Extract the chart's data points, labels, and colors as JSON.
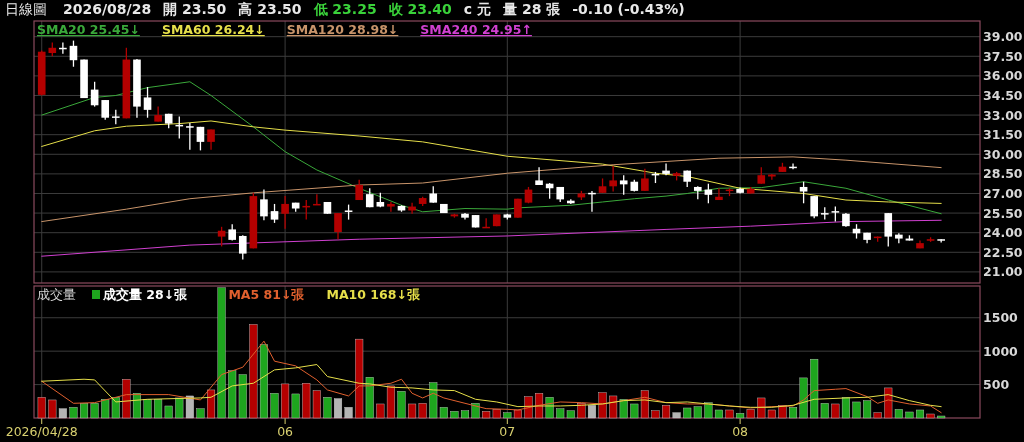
{
  "chart_data": [
    {
      "type": "candlestick",
      "title": "日線圖",
      "annotations": [
        "2026/08/28",
        "開 23.50",
        "高 23.50",
        "低 23.25",
        "收 23.40",
        "c 元",
        "量 28 張",
        "-0.10 (-0.43%)"
      ],
      "categories": [
        "2026/04/28",
        null,
        null,
        null,
        null,
        null,
        null,
        null,
        null,
        null,
        null,
        null,
        null,
        null,
        null,
        null,
        null,
        null,
        null,
        null,
        null,
        null,
        null,
        "06",
        null,
        null,
        null,
        null,
        null,
        null,
        null,
        null,
        null,
        null,
        null,
        null,
        null,
        null,
        null,
        null,
        null,
        null,
        null,
        null,
        "07",
        null,
        null,
        null,
        null,
        null,
        null,
        null,
        null,
        null,
        null,
        null,
        null,
        null,
        null,
        null,
        null,
        null,
        null,
        null,
        null,
        null,
        "08",
        null,
        null,
        null,
        null,
        null,
        null,
        null,
        null,
        null,
        null,
        null,
        null,
        null,
        null,
        null,
        null,
        null,
        null,
        null
      ],
      "ohlc": [
        [
          34.55,
          37.95,
          34.5,
          37.85
        ],
        [
          37.75,
          38.55,
          37.5,
          38.15
        ],
        [
          38.15,
          38.55,
          37.7,
          38.1
        ],
        [
          38.3,
          38.7,
          36.7,
          37.2
        ],
        [
          37.25,
          37.25,
          34.3,
          34.3
        ],
        [
          34.95,
          35.55,
          33.65,
          33.75
        ],
        [
          34.15,
          34.15,
          32.65,
          32.8
        ],
        [
          32.9,
          33.4,
          32.3,
          32.85
        ],
        [
          32.75,
          38.15,
          32.75,
          37.25
        ],
        [
          37.25,
          37.3,
          32.8,
          33.65
        ],
        [
          34.35,
          35.15,
          32.8,
          33.4
        ],
        [
          32.5,
          33.65,
          32.5,
          33.0
        ],
        [
          33.1,
          33.1,
          32.0,
          32.35
        ],
        [
          32.25,
          32.9,
          31.2,
          32.2
        ],
        [
          32.15,
          32.4,
          30.35,
          32.1
        ],
        [
          32.1,
          32.1,
          30.3,
          30.95
        ],
        [
          30.95,
          31.9,
          30.35,
          31.9
        ],
        [
          23.7,
          24.45,
          22.95,
          24.15
        ],
        [
          24.25,
          24.65,
          23.4,
          23.45
        ],
        [
          23.75,
          23.8,
          21.95,
          22.4
        ],
        [
          22.8,
          27.05,
          22.8,
          26.8
        ],
        [
          26.55,
          27.3,
          24.95,
          25.25
        ],
        [
          25.65,
          26.2,
          24.75,
          25.0
        ],
        [
          25.45,
          26.8,
          24.3,
          26.2
        ],
        [
          26.3,
          26.3,
          25.6,
          25.85
        ],
        [
          26.0,
          26.5,
          25.0,
          26.05
        ],
        [
          26.15,
          26.95,
          26.15,
          26.2
        ],
        [
          26.35,
          26.35,
          25.45,
          25.45
        ],
        [
          24.05,
          25.5,
          23.5,
          25.5
        ],
        [
          25.7,
          26.15,
          25.0,
          25.65
        ],
        [
          26.5,
          28.05,
          26.5,
          27.65
        ],
        [
          26.95,
          27.4,
          25.95,
          25.95
        ],
        [
          26.35,
          27.05,
          25.95,
          26.0
        ],
        [
          26.0,
          26.35,
          25.6,
          26.2
        ],
        [
          26.05,
          26.1,
          25.6,
          25.7
        ],
        [
          25.7,
          26.3,
          25.45,
          26.0
        ],
        [
          26.2,
          26.75,
          26.05,
          26.65
        ],
        [
          27.0,
          27.55,
          26.3,
          26.3
        ],
        [
          26.2,
          26.2,
          25.5,
          25.5
        ],
        [
          25.25,
          25.45,
          25.15,
          25.4
        ],
        [
          25.45,
          25.5,
          25.0,
          25.15
        ],
        [
          25.35,
          25.35,
          24.4,
          24.4
        ],
        [
          24.4,
          25.1,
          24.4,
          24.45
        ],
        [
          24.5,
          25.4,
          24.5,
          25.4
        ],
        [
          25.4,
          25.45,
          25.0,
          25.15
        ],
        [
          25.15,
          26.6,
          25.15,
          26.6
        ],
        [
          26.3,
          27.5,
          26.25,
          27.3
        ],
        [
          28.0,
          29.0,
          27.65,
          27.65
        ],
        [
          27.75,
          27.8,
          26.6,
          27.4
        ],
        [
          27.5,
          27.5,
          26.35,
          26.55
        ],
        [
          26.45,
          26.55,
          26.2,
          26.25
        ],
        [
          26.7,
          27.2,
          26.5,
          27.0
        ],
        [
          27.05,
          27.2,
          25.6,
          27.0
        ],
        [
          27.05,
          28.15,
          27.05,
          27.55
        ],
        [
          27.55,
          29.1,
          27.15,
          28.0
        ],
        [
          28.0,
          28.4,
          26.9,
          27.7
        ],
        [
          27.9,
          28.05,
          27.15,
          27.2
        ],
        [
          27.2,
          28.9,
          27.2,
          28.15
        ],
        [
          28.5,
          28.65,
          27.8,
          28.45
        ],
        [
          28.75,
          29.3,
          28.4,
          28.5
        ],
        [
          28.35,
          28.65,
          28.0,
          28.55
        ],
        [
          28.75,
          28.75,
          27.5,
          27.9
        ],
        [
          27.5,
          27.55,
          26.55,
          27.2
        ],
        [
          27.3,
          27.75,
          26.25,
          26.9
        ],
        [
          26.5,
          27.4,
          26.5,
          26.75
        ],
        [
          27.2,
          27.4,
          26.8,
          27.3
        ],
        [
          27.35,
          27.45,
          27.0,
          27.05
        ],
        [
          27.0,
          27.5,
          27.0,
          27.35
        ],
        [
          27.75,
          29.0,
          27.75,
          28.4
        ],
        [
          28.3,
          28.5,
          28.05,
          28.45
        ],
        [
          28.65,
          29.35,
          28.65,
          29.05
        ],
        [
          29.05,
          29.3,
          28.85,
          29.0
        ],
        [
          27.5,
          27.9,
          26.25,
          27.15
        ],
        [
          26.8,
          26.8,
          25.1,
          25.25
        ],
        [
          25.5,
          25.95,
          25.0,
          25.45
        ],
        [
          25.65,
          26.0,
          24.85,
          25.6
        ],
        [
          25.45,
          25.5,
          24.45,
          24.5
        ],
        [
          24.3,
          24.65,
          23.55,
          23.95
        ],
        [
          24.0,
          24.0,
          23.2,
          23.45
        ],
        [
          23.6,
          23.7,
          23.3,
          23.7
        ],
        [
          25.5,
          25.5,
          22.95,
          23.7
        ],
        [
          23.85,
          23.95,
          23.2,
          23.55
        ],
        [
          23.55,
          23.8,
          23.4,
          23.4
        ],
        [
          22.8,
          23.4,
          22.8,
          23.2
        ],
        [
          23.45,
          23.65,
          23.3,
          23.5
        ],
        [
          23.5,
          23.5,
          23.25,
          23.4
        ]
      ],
      "colors": [
        "#b40000",
        "#b40000",
        "#ffffff",
        "#ffffff",
        "#ffffff",
        "#ffffff",
        "#ffffff",
        "#ffffff",
        "#b40000",
        "#ffffff",
        "#ffffff",
        "#b40000",
        "#ffffff",
        "#ffffff",
        "#ffffff",
        "#ffffff",
        "#b40000",
        "#b40000",
        "#ffffff",
        "#ffffff",
        "#b40000",
        "#ffffff",
        "#ffffff",
        "#b40000",
        "#ffffff",
        "#b40000",
        "#b40000",
        "#ffffff",
        "#b40000",
        "#ffffff",
        "#b40000",
        "#ffffff",
        "#ffffff",
        "#b40000",
        "#ffffff",
        "#b40000",
        "#b40000",
        "#ffffff",
        "#ffffff",
        "#b40000",
        "#ffffff",
        "#ffffff",
        "#b40000",
        "#b40000",
        "#ffffff",
        "#b40000",
        "#b40000",
        "#ffffff",
        "#ffffff",
        "#ffffff",
        "#ffffff",
        "#b40000",
        "#ffffff",
        "#b40000",
        "#b40000",
        "#ffffff",
        "#ffffff",
        "#b40000",
        "#ffffff",
        "#ffffff",
        "#b40000",
        "#ffffff",
        "#ffffff",
        "#ffffff",
        "#b40000",
        "#b40000",
        "#ffffff",
        "#b40000",
        "#b40000",
        "#b40000",
        "#b40000",
        "#ffffff",
        "#ffffff",
        "#ffffff",
        "#ffffff",
        "#ffffff",
        "#ffffff",
        "#ffffff",
        "#ffffff",
        "#b40000",
        "#ffffff",
        "#ffffff",
        "#ffffff",
        "#b40000",
        "#b40000",
        "#ffffff"
      ],
      "series": [
        {
          "type": "line",
          "name": "SMA20 25.45↓",
          "color": "#3aa83a",
          "values": [
            33.0,
            null,
            null,
            null,
            null,
            34.35,
            null,
            34.5,
            null,
            null,
            35.1,
            null,
            null,
            null,
            35.55,
            null,
            34.5,
            null,
            null,
            null,
            32.1,
            null,
            null,
            30.2,
            null,
            null,
            28.8,
            null,
            null,
            null,
            27.4,
            null,
            null,
            null,
            26.1,
            null,
            25.6,
            null,
            null,
            null,
            25.85,
            null,
            null,
            null,
            25.8,
            25.9,
            null,
            null,
            null,
            null,
            26.1,
            null,
            null,
            26.35,
            null,
            null,
            26.6,
            null,
            null,
            26.8,
            null,
            27.0,
            null,
            null,
            27.4,
            null,
            null,
            null,
            27.45,
            null,
            null,
            null,
            27.9,
            null,
            null,
            null,
            27.4,
            null,
            null,
            null,
            26.5,
            null,
            null,
            null,
            null,
            25.45
          ]
        },
        {
          "type": "line",
          "name": "SMA60 26.24↓",
          "color": "#e6df4a",
          "values": [
            30.6,
            null,
            null,
            null,
            null,
            31.8,
            null,
            null,
            32.15,
            null,
            null,
            null,
            null,
            32.35,
            null,
            null,
            32.55,
            null,
            null,
            null,
            32.1,
            null,
            null,
            31.85,
            null,
            null,
            null,
            null,
            null,
            null,
            31.4,
            null,
            null,
            null,
            null,
            null,
            30.95,
            null,
            null,
            null,
            null,
            null,
            null,
            null,
            29.85,
            null,
            null,
            null,
            null,
            null,
            null,
            null,
            null,
            29.25,
            null,
            null,
            null,
            null,
            28.55,
            null,
            null,
            28.3,
            null,
            null,
            null,
            null,
            27.4,
            null,
            null,
            null,
            null,
            null,
            27.0,
            null,
            null,
            null,
            26.5,
            null,
            null,
            null,
            26.35,
            null,
            null,
            null,
            null,
            26.24
          ]
        },
        {
          "type": "line",
          "name": "SMA120 28.98↓",
          "color": "#c8946a",
          "values": [
            24.85,
            null,
            null,
            null,
            null,
            null,
            null,
            null,
            25.8,
            null,
            null,
            null,
            null,
            null,
            26.6,
            null,
            null,
            null,
            null,
            null,
            27.05,
            null,
            null,
            null,
            null,
            null,
            null,
            null,
            null,
            null,
            27.65,
            null,
            null,
            null,
            null,
            null,
            27.8,
            null,
            null,
            null,
            null,
            null,
            null,
            null,
            28.55,
            null,
            null,
            null,
            null,
            null,
            null,
            null,
            null,
            null,
            29.2,
            null,
            null,
            null,
            null,
            29.45,
            null,
            null,
            null,
            null,
            29.7,
            null,
            null,
            null,
            null,
            null,
            null,
            29.8,
            null,
            null,
            null,
            null,
            29.55,
            null,
            null,
            null,
            null,
            null,
            null,
            null,
            null,
            28.98
          ]
        },
        {
          "type": "line",
          "name": "SMA240 24.95↑",
          "color": "#d040d0",
          "values": [
            22.2,
            null,
            null,
            null,
            null,
            null,
            null,
            null,
            null,
            null,
            null,
            null,
            null,
            null,
            23.05,
            null,
            null,
            null,
            null,
            null,
            null,
            null,
            null,
            null,
            null,
            null,
            null,
            null,
            null,
            null,
            23.5,
            null,
            null,
            null,
            null,
            null,
            null,
            null,
            null,
            null,
            null,
            null,
            null,
            null,
            23.75,
            null,
            null,
            null,
            null,
            null,
            null,
            null,
            null,
            null,
            null,
            null,
            null,
            null,
            null,
            24.25,
            null,
            null,
            null,
            null,
            null,
            null,
            null,
            24.5,
            null,
            null,
            null,
            null,
            null,
            null,
            null,
            null,
            24.85,
            null,
            null,
            null,
            null,
            null,
            null,
            null,
            null,
            24.95
          ]
        }
      ],
      "ylim": [
        20.15,
        40.2
      ],
      "yticks": [
        {
          "value": 21,
          "label": "21.00"
        },
        {
          "value": 22.5,
          "label": "22.50"
        },
        {
          "value": 24,
          "label": "24.00"
        },
        {
          "value": 25.5,
          "label": "25.50"
        },
        {
          "value": 27,
          "label": "27.00"
        },
        {
          "value": 28.5,
          "label": "28.50"
        },
        {
          "value": 30,
          "label": "30.00"
        },
        {
          "value": 31.5,
          "label": "31.50"
        },
        {
          "value": 33,
          "label": "33.00"
        },
        {
          "value": 34.5,
          "label": "34.50"
        },
        {
          "value": 36,
          "label": "36.00"
        },
        {
          "value": 37.5,
          "label": "37.50"
        },
        {
          "value": 39,
          "label": "39.00"
        }
      ],
      "grid": true,
      "tick_labels": "y",
      "legend": "top left"
    },
    {
      "type": "bar",
      "title": "成交量",
      "categories": [
        "2026/04/28",
        null,
        null,
        null,
        null,
        null,
        null,
        null,
        null,
        null,
        null,
        null,
        null,
        null,
        null,
        null,
        null,
        null,
        null,
        null,
        null,
        null,
        null,
        "06",
        null,
        null,
        null,
        null,
        null,
        null,
        null,
        null,
        null,
        null,
        null,
        null,
        null,
        null,
        null,
        null,
        null,
        null,
        null,
        null,
        "07",
        null,
        null,
        null,
        null,
        null,
        null,
        null,
        null,
        null,
        null,
        null,
        null,
        null,
        null,
        null,
        null,
        null,
        null,
        null,
        null,
        null,
        "08",
        null,
        null,
        null,
        null,
        null,
        null,
        null,
        null,
        null,
        null,
        null,
        null,
        null,
        null,
        null,
        null,
        null,
        null,
        null
      ],
      "series": [
        {
          "type": "bar",
          "name": "成交量 28↓張",
          "colors": [
            "#b40000",
            "#b40000",
            "#b4b4b4",
            "#1ea51e",
            "#1ea51e",
            "#1ea51e",
            "#1ea51e",
            "#1ea51e",
            "#b40000",
            "#1ea51e",
            "#1ea51e",
            "#1ea51e",
            "#1ea51e",
            "#1ea51e",
            "#b4b4b4",
            "#1ea51e",
            "#b40000",
            "#1ea51e",
            "#1ea51e",
            "#1ea51e",
            "#b40000",
            "#1ea51e",
            "#1ea51e",
            "#b40000",
            "#1ea51e",
            "#b40000",
            "#b40000",
            "#1ea51e",
            "#b4b4b4",
            "#b4b4b4",
            "#b40000",
            "#1ea51e",
            "#b40000",
            "#b40000",
            "#1ea51e",
            "#b40000",
            "#b40000",
            "#1ea51e",
            "#1ea51e",
            "#1ea51e",
            "#1ea51e",
            "#1ea51e",
            "#b40000",
            "#b40000",
            "#1ea51e",
            "#b40000",
            "#b40000",
            "#b40000",
            "#1ea51e",
            "#1ea51e",
            "#1ea51e",
            "#b40000",
            "#b4b4b4",
            "#b40000",
            "#b40000",
            "#1ea51e",
            "#1ea51e",
            "#b40000",
            "#b40000",
            "#b40000",
            "#b4b4b4",
            "#1ea51e",
            "#1ea51e",
            "#1ea51e",
            "#1ea51e",
            "#b40000",
            "#1ea51e",
            "#b40000",
            "#b40000",
            "#b40000",
            "#b40000",
            "#1ea51e",
            "#1ea51e",
            "#1ea51e",
            "#1ea51e",
            "#b40000",
            "#1ea51e",
            "#1ea51e",
            "#1ea51e",
            "#b40000",
            "#b40000",
            "#1ea51e",
            "#1ea51e",
            "#1ea51e",
            "#b40000",
            "#1ea51e"
          ],
          "values": [
            310,
            270,
            140,
            160,
            220,
            220,
            280,
            310,
            580,
            370,
            280,
            280,
            180,
            300,
            330,
            140,
            420,
            1950,
            710,
            650,
            1400,
            1100,
            370,
            510,
            360,
            520,
            410,
            310,
            290,
            160,
            1180,
            610,
            210,
            480,
            400,
            210,
            220,
            530,
            160,
            100,
            110,
            220,
            100,
            130,
            80,
            120,
            320,
            370,
            310,
            140,
            110,
            220,
            190,
            380,
            330,
            280,
            210,
            410,
            110,
            190,
            80,
            150,
            170,
            230,
            120,
            120,
            70,
            130,
            300,
            120,
            190,
            160,
            600,
            880,
            220,
            210,
            310,
            240,
            260,
            80,
            450,
            130,
            90,
            120,
            60,
            30
          ]
        },
        {
          "type": "line",
          "name": "MA5 81↓張",
          "color": "#e0602e",
          "values": [
            550,
            null,
            null,
            220,
            null,
            230,
            null,
            null,
            350,
            null,
            null,
            null,
            350,
            null,
            null,
            270,
            null,
            650,
            null,
            760,
            null,
            1150,
            850,
            null,
            780,
            null,
            570,
            420,
            null,
            330,
            480,
            480,
            null,
            520,
            580,
            370,
            300,
            370,
            300,
            null,
            220,
            null,
            140,
            null,
            130,
            120,
            null,
            190,
            null,
            240,
            null,
            230,
            null,
            210,
            null,
            260,
            null,
            310,
            null,
            230,
            null,
            210,
            null,
            210,
            null,
            180,
            null,
            150,
            null,
            170,
            null,
            180,
            270,
            410,
            null,
            430,
            440,
            null,
            320,
            220,
            270,
            null,
            210,
            null,
            180,
            80
          ]
        },
        {
          "type": "line",
          "name": "MA10 168↓張",
          "color": "#e6df4a",
          "values": [
            550,
            null,
            null,
            null,
            580,
            570,
            null,
            240,
            null,
            null,
            280,
            null,
            null,
            null,
            null,
            300,
            310,
            null,
            480,
            null,
            520,
            null,
            720,
            null,
            750,
            null,
            800,
            620,
            null,
            null,
            520,
            510,
            null,
            460,
            null,
            450,
            null,
            420,
            null,
            410,
            null,
            280,
            null,
            240,
            null,
            170,
            null,
            180,
            null,
            180,
            null,
            190,
            null,
            210,
            null,
            260,
            null,
            270,
            null,
            230,
            null,
            240,
            null,
            210,
            null,
            180,
            null,
            160,
            null,
            160,
            null,
            190,
            null,
            280,
            null,
            null,
            300,
            null,
            310,
            null,
            350,
            null,
            260,
            null,
            190,
            170
          ]
        }
      ],
      "ylim": [
        0,
        1975
      ],
      "yticks": [
        500,
        1000,
        1500
      ],
      "grid": true,
      "legend": "top left"
    }
  ]
}
